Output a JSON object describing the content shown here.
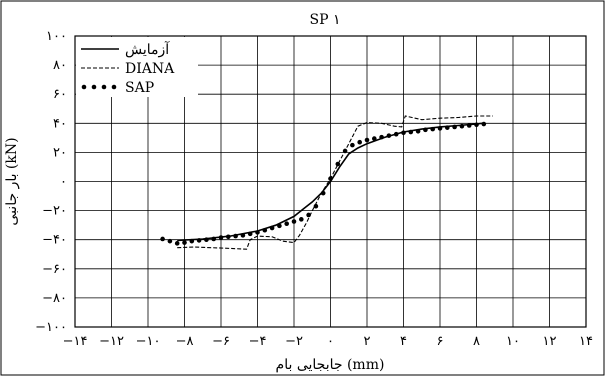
{
  "chart_data": {
    "type": "line",
    "title": "SP ۱",
    "xlabel": "جابجایی بام (mm)",
    "ylabel": "بار جانبی (kN)",
    "xlim": [
      -14,
      14
    ],
    "ylim": [
      -100,
      100
    ],
    "x_ticks": [
      -14,
      -12,
      -10,
      -8,
      -6,
      -4,
      -2,
      0,
      2,
      4,
      6,
      8,
      10,
      12,
      14
    ],
    "y_ticks": [
      -100,
      -80,
      -60,
      -40,
      -20,
      0,
      20,
      40,
      60,
      80,
      100
    ],
    "x_tick_labels": [
      "−۱۴",
      "−۱۲",
      "−۱۰",
      "−۸",
      "−۶",
      "−۴",
      "−۲",
      "۰",
      "۲",
      "۴",
      "۶",
      "۸",
      "۱۰",
      "۱۲",
      "۱۴"
    ],
    "y_tick_labels": [
      "−۱۰۰",
      "−۸۰",
      "−۶۰",
      "−۴۰",
      "−۲۰",
      "۰",
      "۲۰",
      "۴۰",
      "۶۰",
      "۸۰",
      "۱۰۰"
    ],
    "grid": true,
    "legend_position": "top-left",
    "series": [
      {
        "name": "آزمایش",
        "style": "solid",
        "color": "#000000",
        "x": [
          -8.4,
          -7.0,
          -5.5,
          -4.0,
          -3.0,
          -2.0,
          -1.5,
          -1.0,
          -0.5,
          0.0,
          0.5,
          1.0,
          1.5,
          2.0,
          3.0,
          4.0,
          5.0,
          6.0,
          7.0,
          8.0,
          8.3
        ],
        "y": [
          -40.5,
          -39.5,
          -37.5,
          -34.0,
          -30.0,
          -24.0,
          -19.0,
          -14.0,
          -8.0,
          0.0,
          10.0,
          19.0,
          23.0,
          26.0,
          30.5,
          34.0,
          36.0,
          37.5,
          38.5,
          39.5,
          40.0
        ]
      },
      {
        "name": "DIANA",
        "style": "dashed",
        "color": "#000000",
        "x": [
          -8.4,
          -7.5,
          -6.5,
          -5.5,
          -4.6,
          -4.4,
          -4.0,
          -3.2,
          -2.6,
          -2.0,
          -1.7,
          -1.3,
          -1.0,
          -0.5,
          0.0,
          0.5,
          1.0,
          1.5,
          2.0,
          2.8,
          3.5,
          3.9,
          4.1,
          5.0,
          6.0,
          7.0,
          8.0,
          8.9
        ],
        "y": [
          -45.5,
          -45.0,
          -45.5,
          -46.0,
          -46.5,
          -40.0,
          -37.5,
          -38.0,
          -41.0,
          -42.0,
          -37.0,
          -28.0,
          -20.0,
          -8.0,
          2.0,
          14.0,
          26.0,
          38.0,
          40.5,
          40.0,
          38.0,
          37.5,
          45.0,
          42.5,
          43.5,
          44.0,
          45.0,
          45.0
        ]
      },
      {
        "name": "SAP",
        "style": "dotted",
        "color": "#000000",
        "x": [
          -9.2,
          -8.8,
          -8.4,
          -8.0,
          -7.6,
          -7.2,
          -6.8,
          -6.4,
          -6.0,
          -5.6,
          -5.2,
          -4.8,
          -4.4,
          -4.0,
          -3.6,
          -3.2,
          -2.8,
          -2.4,
          -2.0,
          -1.6,
          -1.2,
          -0.8,
          -0.4,
          0.0,
          0.4,
          0.8,
          1.2,
          1.6,
          2.0,
          2.4,
          2.8,
          3.2,
          3.6,
          4.0,
          4.4,
          4.8,
          5.2,
          5.6,
          6.0,
          6.4,
          6.8,
          7.2,
          7.6,
          8.0,
          8.4
        ],
        "y": [
          -39.5,
          -41.0,
          -42.5,
          -42.0,
          -41.0,
          -40.5,
          -40.0,
          -39.5,
          -38.5,
          -38.0,
          -37.5,
          -37.0,
          -36.0,
          -35.0,
          -33.5,
          -32.0,
          -30.5,
          -29.0,
          -27.5,
          -26.0,
          -23.0,
          -17.0,
          -8.0,
          2.0,
          12.0,
          21.0,
          25.0,
          27.0,
          28.5,
          29.5,
          30.5,
          31.5,
          32.5,
          33.5,
          34.0,
          34.5,
          35.5,
          36.0,
          36.5,
          37.0,
          37.5,
          38.0,
          38.5,
          39.0,
          39.5
        ]
      }
    ]
  }
}
